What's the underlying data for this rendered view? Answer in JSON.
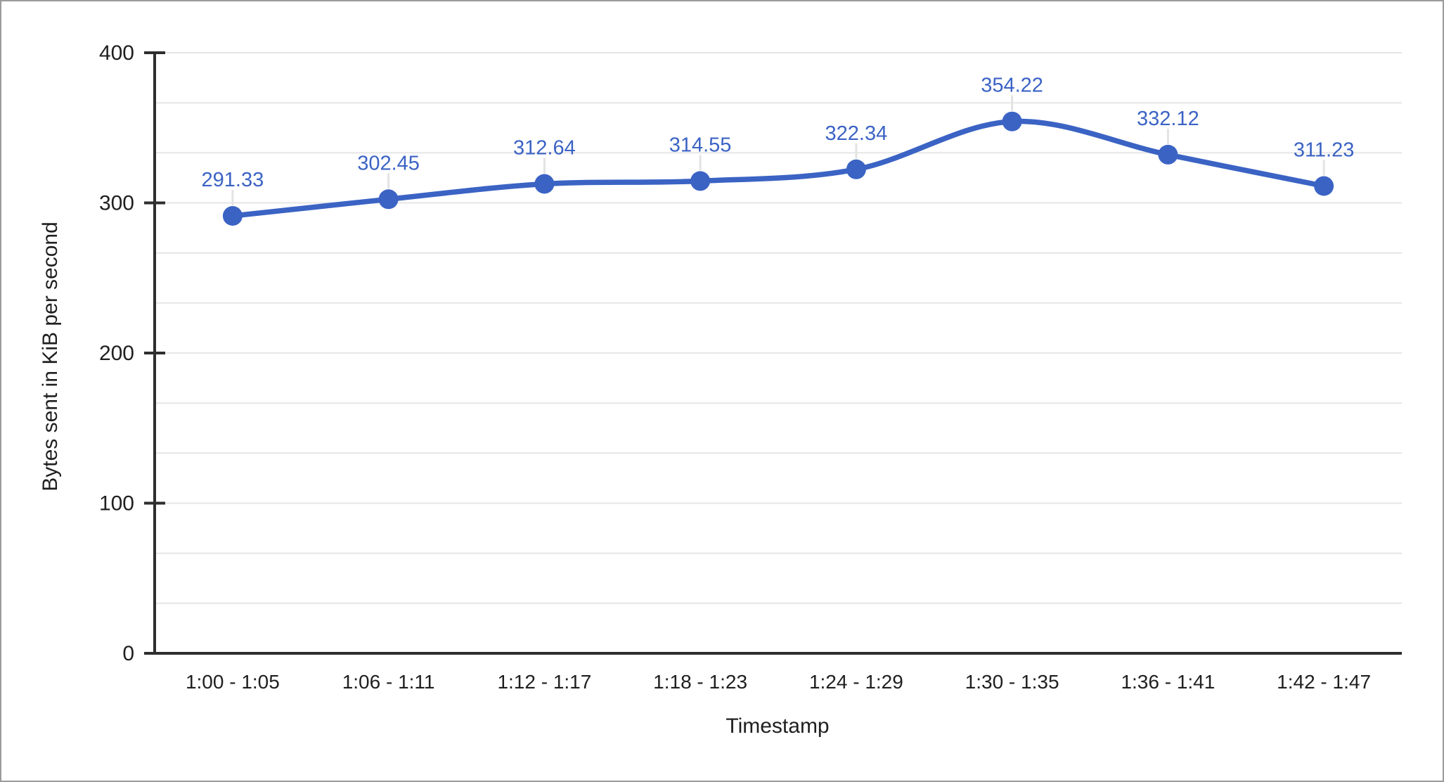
{
  "chart_data": {
    "type": "line",
    "title": "",
    "xlabel": "Timestamp",
    "ylabel": "Bytes sent in KiB per second",
    "categories": [
      "1:00 - 1:05",
      "1:06 - 1:11",
      "1:12 - 1:17",
      "1:18 - 1:23",
      "1:24 - 1:29",
      "1:30 - 1:35",
      "1:36 - 1:41",
      "1:42 - 1:47"
    ],
    "values": [
      291.33,
      302.45,
      312.64,
      314.55,
      322.34,
      354.22,
      332.12,
      311.23
    ],
    "point_labels": [
      "291.33",
      "302.45",
      "312.64",
      "314.55",
      "322.34",
      "354.22",
      "332.12",
      "311.23"
    ],
    "ylim": [
      0,
      400
    ],
    "yticks": [
      "0",
      "100",
      "200",
      "300",
      "400"
    ],
    "minor_gridlines_between_major": 2,
    "grid": true,
    "line_smooth": true,
    "show_data_labels": true,
    "legend_position": "none",
    "colors": {
      "series": "#3b63c4",
      "data_label": "#3b63c4",
      "gridline": "#e6e6e6",
      "label_connector": "#e3e3e3",
      "axis_line": "#2e2e2e",
      "tick_text": "#1f1f1f",
      "axis_title_text": "#1f1f1f",
      "background": "#ffffff",
      "frame_border": "#9b9b9b"
    }
  }
}
